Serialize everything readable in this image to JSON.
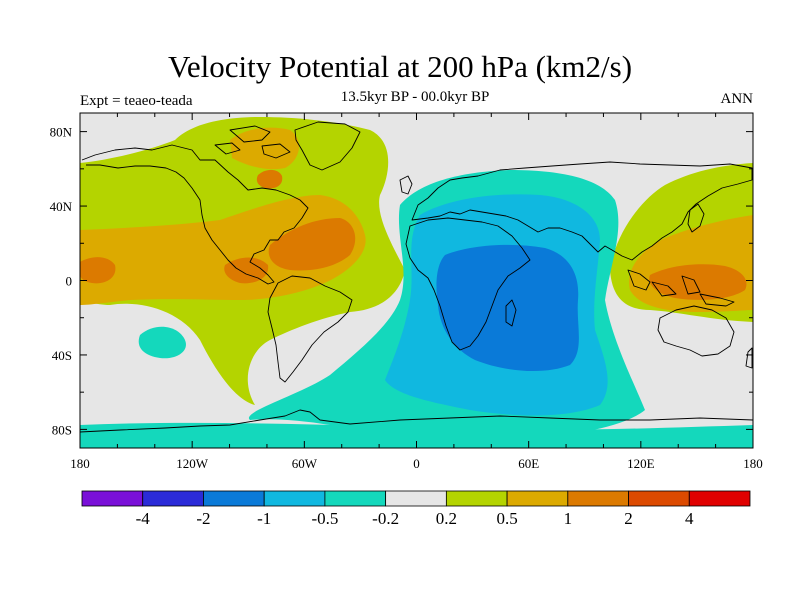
{
  "title": "Velocity Potential at 200 hPa (km2/s)",
  "subtitle": "13.5kyr BP - 00.0kyr BP",
  "left_label": "Expt = teaeo-teada",
  "right_label": "ANN",
  "map": {
    "projection": "cylindrical-equidistant",
    "lon_range": [
      -180,
      180
    ],
    "lat_range": [
      -90,
      90
    ],
    "x_ticks": [
      {
        "lon": -180,
        "label": "180"
      },
      {
        "lon": -120,
        "label": "120W"
      },
      {
        "lon": -60,
        "label": "60W"
      },
      {
        "lon": 0,
        "label": "0"
      },
      {
        "lon": 60,
        "label": "60E"
      },
      {
        "lon": 120,
        "label": "120E"
      },
      {
        "lon": 180,
        "label": "180"
      }
    ],
    "y_ticks": [
      {
        "lat": 80,
        "label": "80N"
      },
      {
        "lat": 40,
        "label": "40N"
      },
      {
        "lat": 0,
        "label": "0"
      },
      {
        "lat": -40,
        "label": "40S"
      },
      {
        "lat": -80,
        "label": "80S"
      }
    ],
    "background_color": "#e6e6e6",
    "coastline_color": "#000000"
  },
  "colorbar": {
    "colors": [
      "#7a10d8",
      "#2b2bd8",
      "#0a7ad8",
      "#10b8e0",
      "#14d8bc",
      "#e6e6e6",
      "#b4d400",
      "#dcaa00",
      "#dc7a00",
      "#dc4a00",
      "#e00000"
    ],
    "labels": [
      "-4",
      "-2",
      "-1",
      "-0.5",
      "-0.2",
      "0.2",
      "0.5",
      "1",
      "2",
      "4"
    ]
  }
}
